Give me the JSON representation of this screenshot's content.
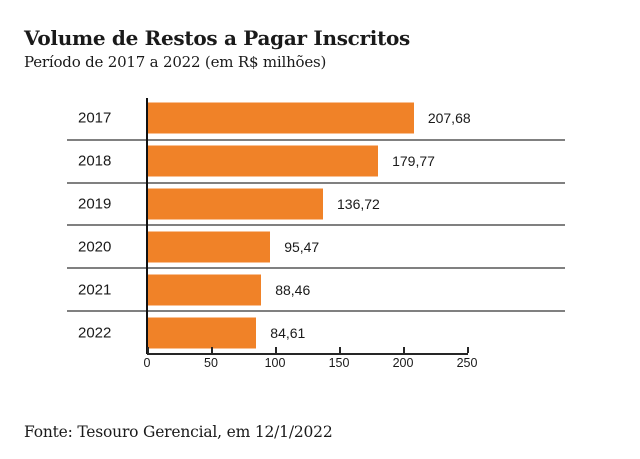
{
  "header": {
    "title": "Volume de Restos a Pagar Inscritos",
    "subtitle": "Período de 2017 a 2022 (em R$ milhões)"
  },
  "footer": {
    "source": "Fonte: Tesouro Gerencial, em 12/1/2022"
  },
  "colors": {
    "bar": "#F08228",
    "separator": "#808080",
    "axis": "#262626",
    "text": "#1a1a1a",
    "background": "#ffffff"
  },
  "chart_data": {
    "type": "bar",
    "orientation": "horizontal",
    "title": "Volume de Restos a Pagar Inscritos",
    "subtitle": "Período de 2017 a 2022 (em R$ milhões)",
    "source": "Fonte: Tesouro Gerencial, em 12/1/2022",
    "categories": [
      "2017",
      "2018",
      "2019",
      "2020",
      "2021",
      "2022"
    ],
    "values": [
      207.68,
      179.77,
      136.72,
      95.47,
      88.46,
      84.61
    ],
    "value_labels": [
      "207,68",
      "179,77",
      "136,72",
      "95,47",
      "88,46",
      "84,61"
    ],
    "xlabel": "",
    "ylabel": "",
    "xlim": [
      0,
      250
    ],
    "xticks": [
      0,
      50,
      100,
      150,
      200,
      250
    ],
    "xtick_labels": [
      "0",
      "50",
      "100",
      "150",
      "200",
      "250"
    ],
    "legend": false,
    "grid": "horizontal-row-separators",
    "bar_color": "#F08228"
  }
}
